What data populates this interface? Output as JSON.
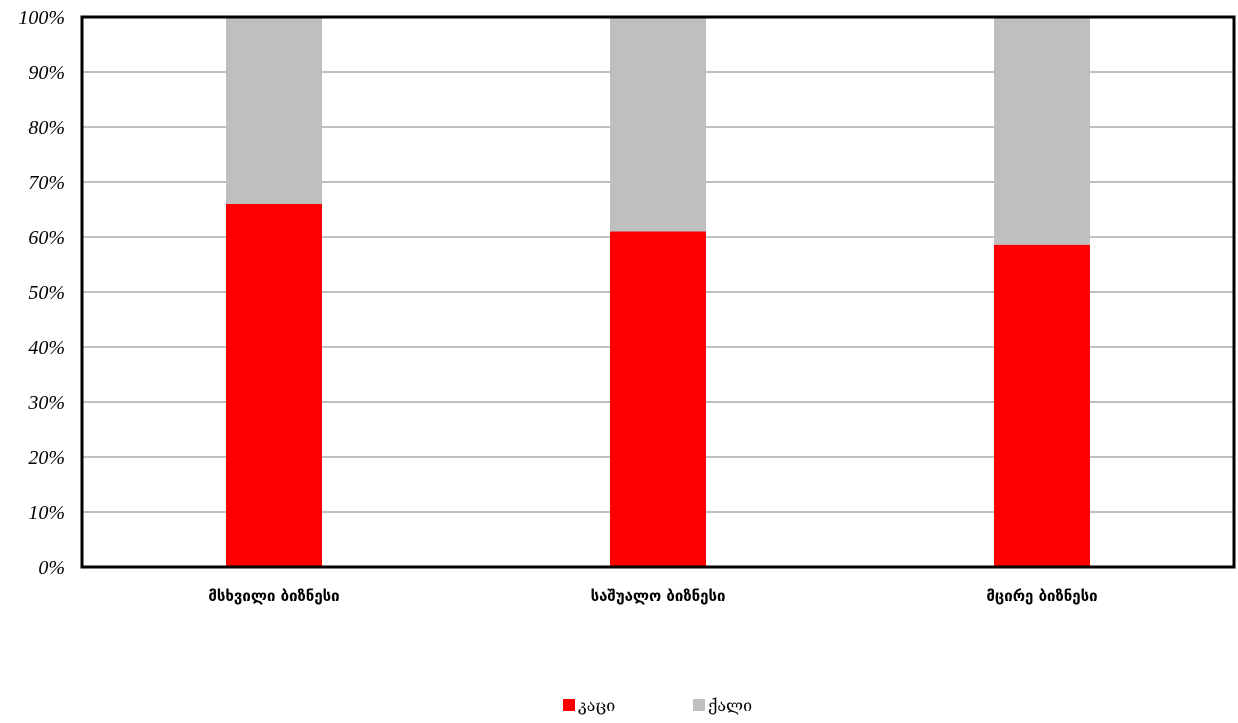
{
  "colors": {
    "male": "#ff0000",
    "female": "#bfbfbf",
    "gridline": "#808080",
    "frame": "#000000"
  },
  "chart_data": {
    "type": "bar",
    "stacked": "percent",
    "categories": [
      "მსხვილი ბიზნესი",
      "საშუალო ბიზნესი",
      "მცირე ბიზნესი"
    ],
    "series": [
      {
        "name": "კაცი",
        "values": [
          66,
          61,
          58.6
        ]
      },
      {
        "name": "ქალი",
        "values": [
          34,
          39,
          41.4
        ]
      }
    ],
    "ylim": [
      0,
      100
    ],
    "yticks": [
      "0%",
      "10%",
      "20%",
      "30%",
      "40%",
      "50%",
      "60%",
      "70%",
      "80%",
      "90%",
      "100%"
    ],
    "grid": true,
    "legend_position": "bottom"
  }
}
